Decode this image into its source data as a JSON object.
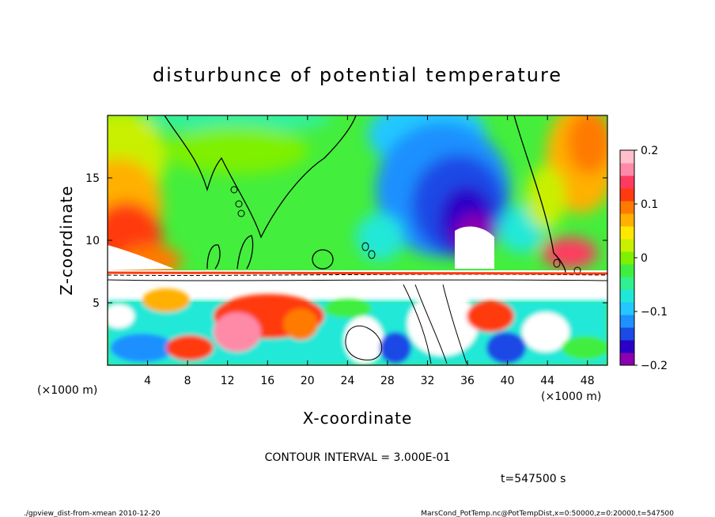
{
  "chart_data": {
    "type": "heatmap",
    "title": "disturbunce of potential temperature",
    "xlabel": "X-coordinate",
    "ylabel": "Z-coordinate",
    "x_unit": "(×1000 m)",
    "y_unit": "(×1000 m)",
    "xlim": [
      0,
      50
    ],
    "ylim": [
      0,
      20
    ],
    "x_ticks": [
      "4",
      "8",
      "12",
      "16",
      "20",
      "24",
      "28",
      "32",
      "36",
      "40",
      "44",
      "48"
    ],
    "x_tick_values": [
      4,
      8,
      12,
      16,
      20,
      24,
      28,
      32,
      36,
      40,
      44,
      48
    ],
    "y_ticks": [
      "5",
      "10",
      "15"
    ],
    "y_tick_values": [
      5,
      10,
      15
    ],
    "colorbar": {
      "min": -0.2,
      "max": 0.2,
      "tick_labels": [
        "0.2",
        "0.1",
        "0",
        "−0.1",
        "−0.2"
      ],
      "tick_values": [
        0.2,
        0.1,
        0,
        -0.1,
        -0.2
      ],
      "colors": [
        "#8b00b0",
        "#2a00c8",
        "#1c4ae6",
        "#1e90ff",
        "#22c8ff",
        "#20e8d8",
        "#30f090",
        "#40ee40",
        "#7ef000",
        "#c8f000",
        "#ffe800",
        "#ffb000",
        "#ff7a00",
        "#ff3a10",
        "#ff3a60",
        "#ff8aa8",
        "#ffc0cc"
      ]
    },
    "contour_interval": "CONTOUR INTERVAL = 3.000E-01",
    "time": "t=547500 s",
    "footer_left": "./gpview_dist-from-xmean  2010-12-20",
    "footer_right": "MarsCond_PotTemp.nc@PotTempDist,x=0:50000,z=0:20000,t=547500"
  }
}
